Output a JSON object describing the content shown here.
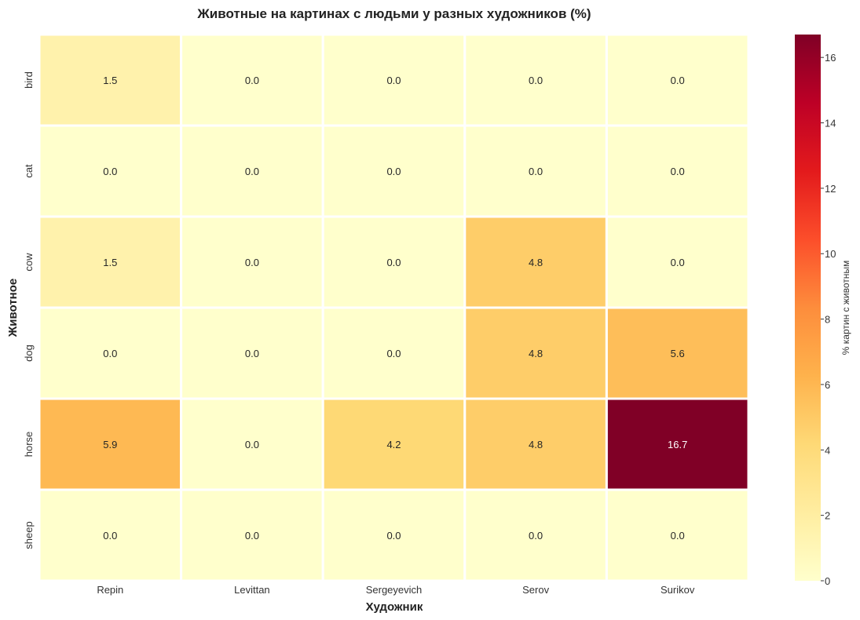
{
  "chart_data": {
    "type": "heatmap",
    "title": "Животные на картинах с людьми у разных художников (%)",
    "xlabel": "Художник",
    "ylabel": "Животное",
    "x_categories": [
      "Repin",
      "Levittan",
      "Sergeyevich",
      "Serov",
      "Surikov"
    ],
    "y_categories": [
      "bird",
      "cat",
      "cow",
      "dog",
      "horse",
      "sheep"
    ],
    "values": [
      [
        1.5,
        0.0,
        0.0,
        0.0,
        0.0
      ],
      [
        0.0,
        0.0,
        0.0,
        0.0,
        0.0
      ],
      [
        1.5,
        0.0,
        0.0,
        4.8,
        0.0
      ],
      [
        0.0,
        0.0,
        0.0,
        4.8,
        5.6
      ],
      [
        5.9,
        0.0,
        4.2,
        4.8,
        16.7
      ],
      [
        0.0,
        0.0,
        0.0,
        0.0,
        0.0
      ]
    ],
    "colorbar": {
      "label": "% картин с животным",
      "range": [
        0,
        16.7
      ],
      "ticks": [
        0,
        2,
        4,
        6,
        8,
        10,
        12,
        14,
        16
      ],
      "colormap": "YlOrRd"
    },
    "grid": false
  }
}
